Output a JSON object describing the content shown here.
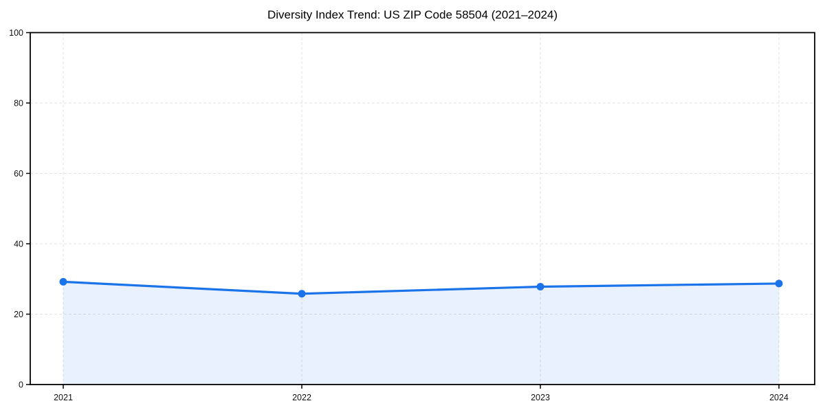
{
  "chart_data": {
    "type": "line",
    "title": "Diversity Index Trend: US ZIP Code 58504 (2021–2024)",
    "categories": [
      "2021",
      "2022",
      "2023",
      "2024"
    ],
    "values": [
      29.2,
      25.8,
      27.8,
      28.7
    ],
    "xlabel": "",
    "ylabel": "",
    "ylim": [
      0,
      100
    ],
    "yticks": [
      0,
      20,
      40,
      60,
      80,
      100
    ],
    "grid": true,
    "grid_style": "dashed",
    "legend": false,
    "area_fill": true,
    "colors": {
      "line": "#1a73e8",
      "marker": "#1a73e8",
      "area": "rgba(26,115,232,0.10)",
      "grid": "#e3e3e3",
      "axis": "#000000",
      "text": "#111111"
    }
  }
}
